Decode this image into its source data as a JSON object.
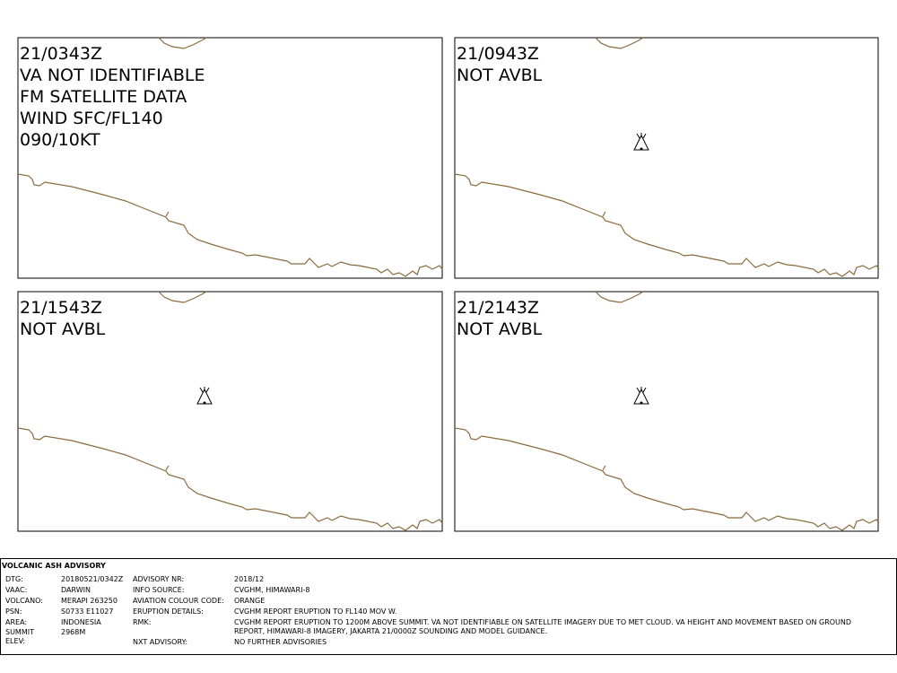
{
  "panels": [
    {
      "lines": [
        "21/0343Z",
        "VA NOT IDENTIFIABLE",
        "FM SATELLITE DATA",
        "WIND SFC/FL140",
        "090/10KT"
      ]
    },
    {
      "lines": [
        "21/0943Z",
        "NOT AVBL"
      ]
    },
    {
      "lines": [
        "21/1543Z",
        "NOT AVBL"
      ]
    },
    {
      "lines": [
        "21/2143Z",
        "NOT AVBL"
      ]
    }
  ],
  "advisory": {
    "title": "VOLCANIC ASH ADVISORY",
    "left": [
      {
        "label": "DTG:",
        "value": "20180521/0342Z"
      },
      {
        "label": "VAAC:",
        "value": "DARWIN"
      },
      {
        "label": "VOLCANO:",
        "value": "MERAPI 263250"
      },
      {
        "label": "PSN:",
        "value": "S0733 E11027"
      },
      {
        "label": "AREA:",
        "value": "INDONESIA"
      },
      {
        "label": "SUMMIT ELEV:",
        "value": "2968M"
      }
    ],
    "right": [
      {
        "label": "ADVISORY NR:",
        "value": "2018/12"
      },
      {
        "label": "INFO SOURCE:",
        "value": "CVGHM, HIMAWARI-8"
      },
      {
        "label": "AVIATION COLOUR CODE:",
        "value": "ORANGE"
      },
      {
        "label": "ERUPTION DETAILS:",
        "value": "CVGHM REPORT ERUPTION TO FL140 MOV W."
      },
      {
        "label": "RMK:",
        "value": "CVGHM REPORT ERUPTION TO 1200M ABOVE SUMMIT. VA NOT IDENTIFIABLE ON SATELLITE IMAGERY DUE TO MET CLOUD. VA HEIGHT AND MOVEMENT BASED ON GROUND REPORT, HIMAWARI-8 IMAGERY, JAKARTA 21/0000Z SOUNDING AND MODEL GUIDANCE."
      },
      {
        "label": "NXT ADVISORY:",
        "value": "NO FURTHER ADVISORIES"
      }
    ]
  }
}
